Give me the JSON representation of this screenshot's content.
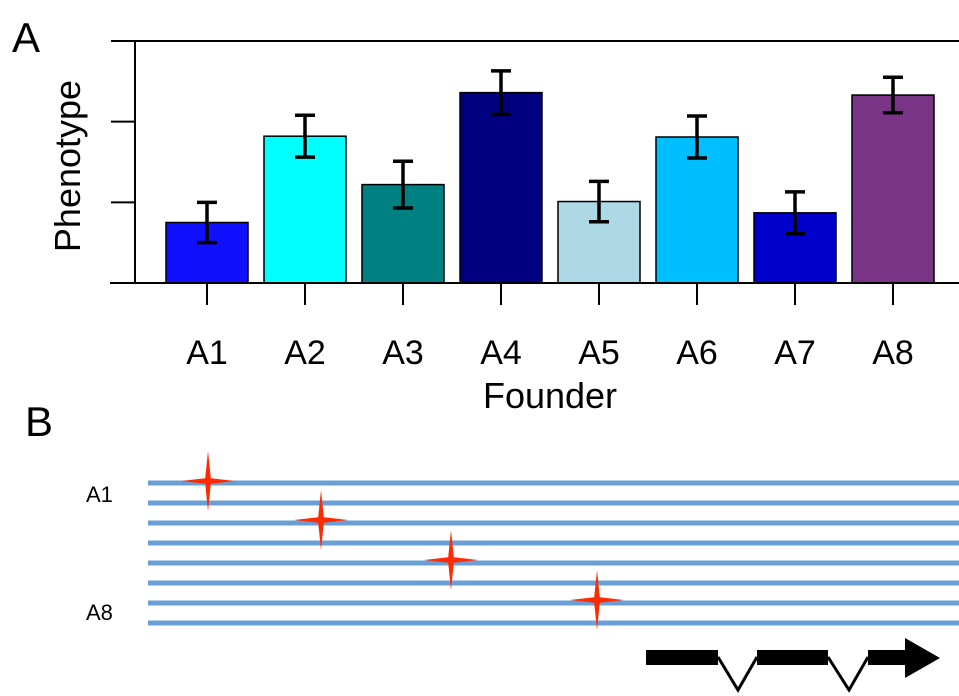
{
  "panels": {
    "a_label": "A",
    "b_label": "B"
  },
  "chart_data": {
    "type": "bar",
    "title": "",
    "xlabel": "Founder",
    "ylabel": "Phenotype",
    "categories": [
      "A1",
      "A2",
      "A3",
      "A4",
      "A5",
      "A6",
      "A7",
      "A8"
    ],
    "values": [
      0.75,
      1.82,
      1.22,
      2.36,
      1.01,
      1.81,
      0.87,
      2.33
    ],
    "error": [
      0.25,
      0.26,
      0.29,
      0.27,
      0.25,
      0.26,
      0.26,
      0.22
    ],
    "colors": [
      "#1010ff",
      "#00ffff",
      "#008080",
      "#000080",
      "#add8e6",
      "#00bfff",
      "#0000cd",
      "#7a3485"
    ],
    "ylim": [
      0,
      3
    ],
    "y_tick_values": [
      0,
      1,
      2,
      3
    ],
    "y_tick_labels_shown": false,
    "grid": false,
    "legend": "none"
  },
  "haplotypes": {
    "labels": [
      "A1",
      "A8"
    ],
    "line_count": 8,
    "line_color": "#6a9fd6",
    "marker_color": "#ff2a00",
    "marker_count": 4,
    "gene_color": "#000000"
  }
}
